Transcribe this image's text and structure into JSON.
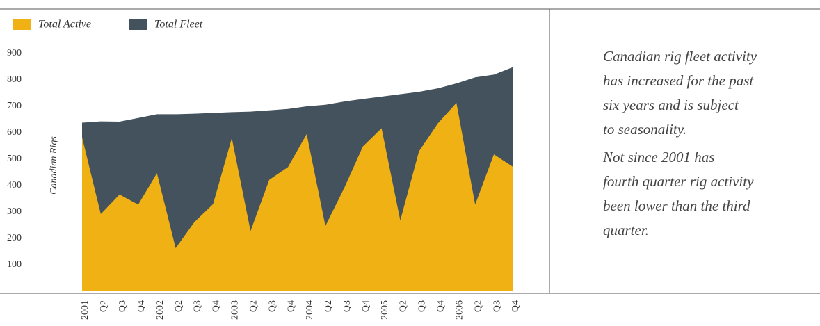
{
  "chart_data": {
    "type": "area",
    "y_label": "Canadian Rigs",
    "categories": [
      "2001",
      "Q2",
      "Q3",
      "Q4",
      "2002",
      "Q2",
      "Q3",
      "Q4",
      "2003",
      "Q2",
      "Q3",
      "Q4",
      "2004",
      "Q2",
      "Q3",
      "Q4",
      "2005",
      "Q2",
      "Q3",
      "Q4",
      "2006",
      "Q2",
      "Q3",
      "Q4"
    ],
    "series": [
      {
        "name": "Total Active",
        "color": "#f0b114",
        "values": [
          583,
          292,
          366,
          328,
          447,
          163,
          262,
          330,
          580,
          228,
          422,
          470,
          595,
          247,
          390,
          548,
          617,
          268,
          530,
          635,
          713,
          328,
          518,
          472
        ]
      },
      {
        "name": "Total Fleet",
        "color": "#44525d",
        "values": [
          638,
          643,
          642,
          656,
          670,
          670,
          672,
          675,
          678,
          680,
          685,
          690,
          700,
          706,
          718,
          728,
          737,
          746,
          755,
          768,
          787,
          810,
          820,
          848
        ]
      }
    ],
    "ylim": [
      0,
      900
    ],
    "yticks": [
      100,
      200,
      300,
      400,
      500,
      600,
      700,
      800,
      900
    ],
    "annotations": [
      [
        "Canadian rig fleet activity",
        "has increased for the past",
        "six years and is subject",
        "to seasonality."
      ],
      [
        "Not since 2001 has",
        "fourth quarter rig activity",
        "been lower than the third",
        "quarter."
      ]
    ]
  }
}
